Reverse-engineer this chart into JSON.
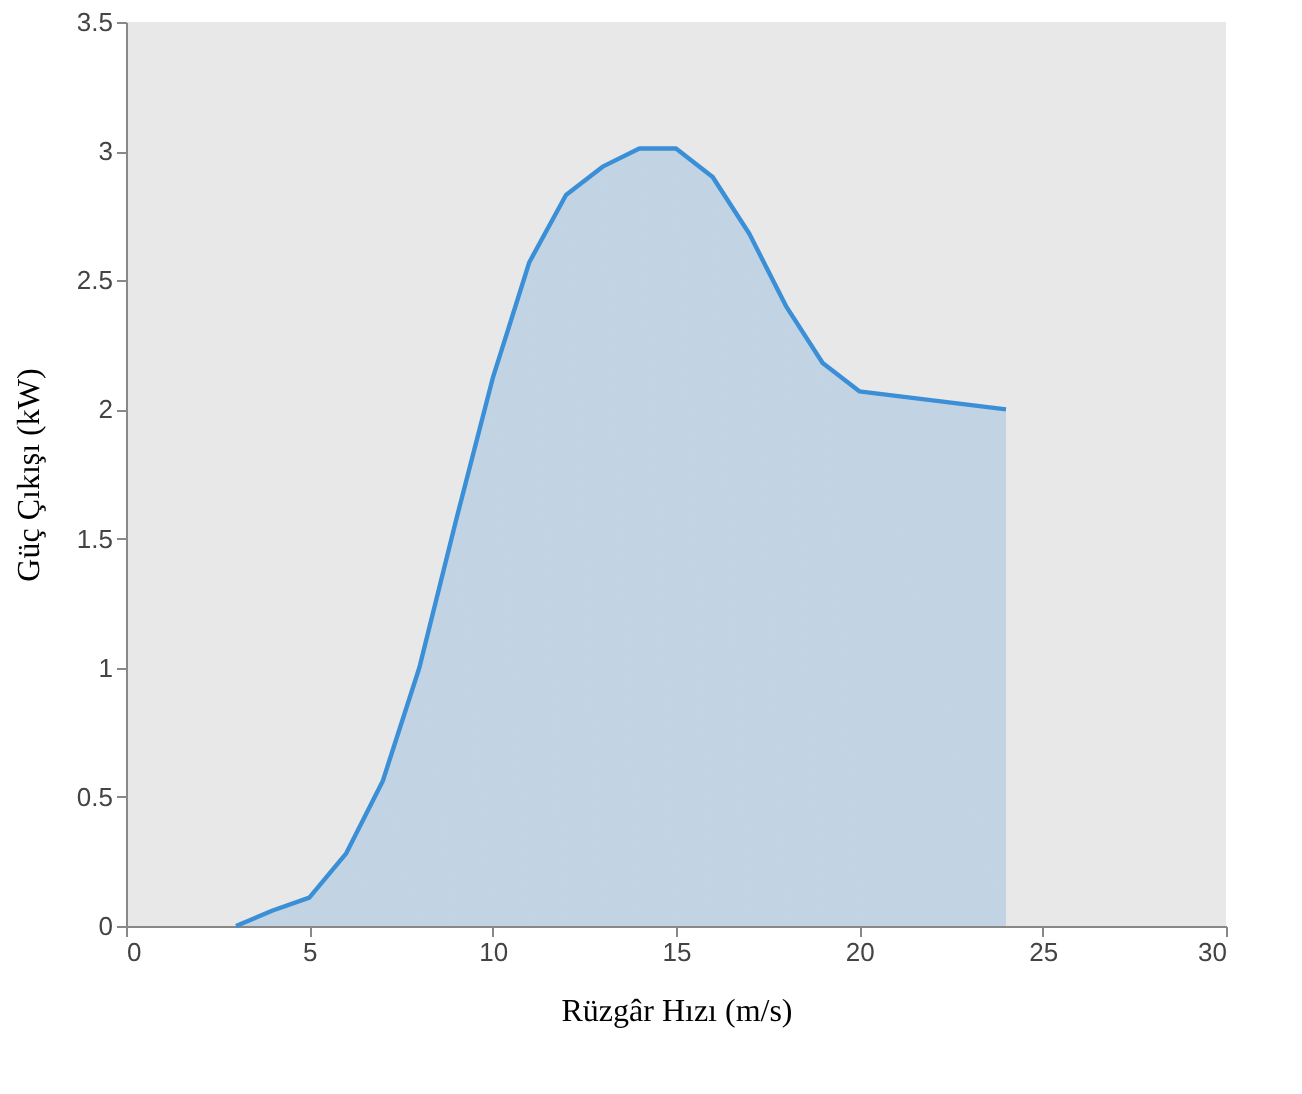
{
  "chart_data": {
    "type": "area",
    "xlabel": "Rüzgâr Hızı (m/s)",
    "ylabel": "Güç Çıkışı (kW)",
    "x": [
      3,
      4,
      5,
      6,
      7,
      8,
      9,
      10,
      11,
      12,
      13,
      14,
      15,
      16,
      17,
      18,
      19,
      20,
      24
    ],
    "series": [
      {
        "color": "#3a8fd6",
        "values": [
          0,
          0.06,
          0.11,
          0.28,
          0.56,
          1.0,
          1.57,
          2.12,
          2.57,
          2.83,
          2.94,
          3.01,
          3.01,
          2.9,
          2.68,
          2.4,
          2.18,
          2.07,
          2.0
        ]
      }
    ],
    "xlim": [
      0,
      30
    ],
    "xticks": [
      0,
      5,
      10,
      15,
      20,
      25,
      30
    ],
    "ylim": [
      0,
      3.5
    ],
    "yticks": [
      0,
      0.5,
      1,
      1.5,
      2,
      2.5,
      3,
      3.5
    ],
    "grid": false,
    "legend": false
  }
}
